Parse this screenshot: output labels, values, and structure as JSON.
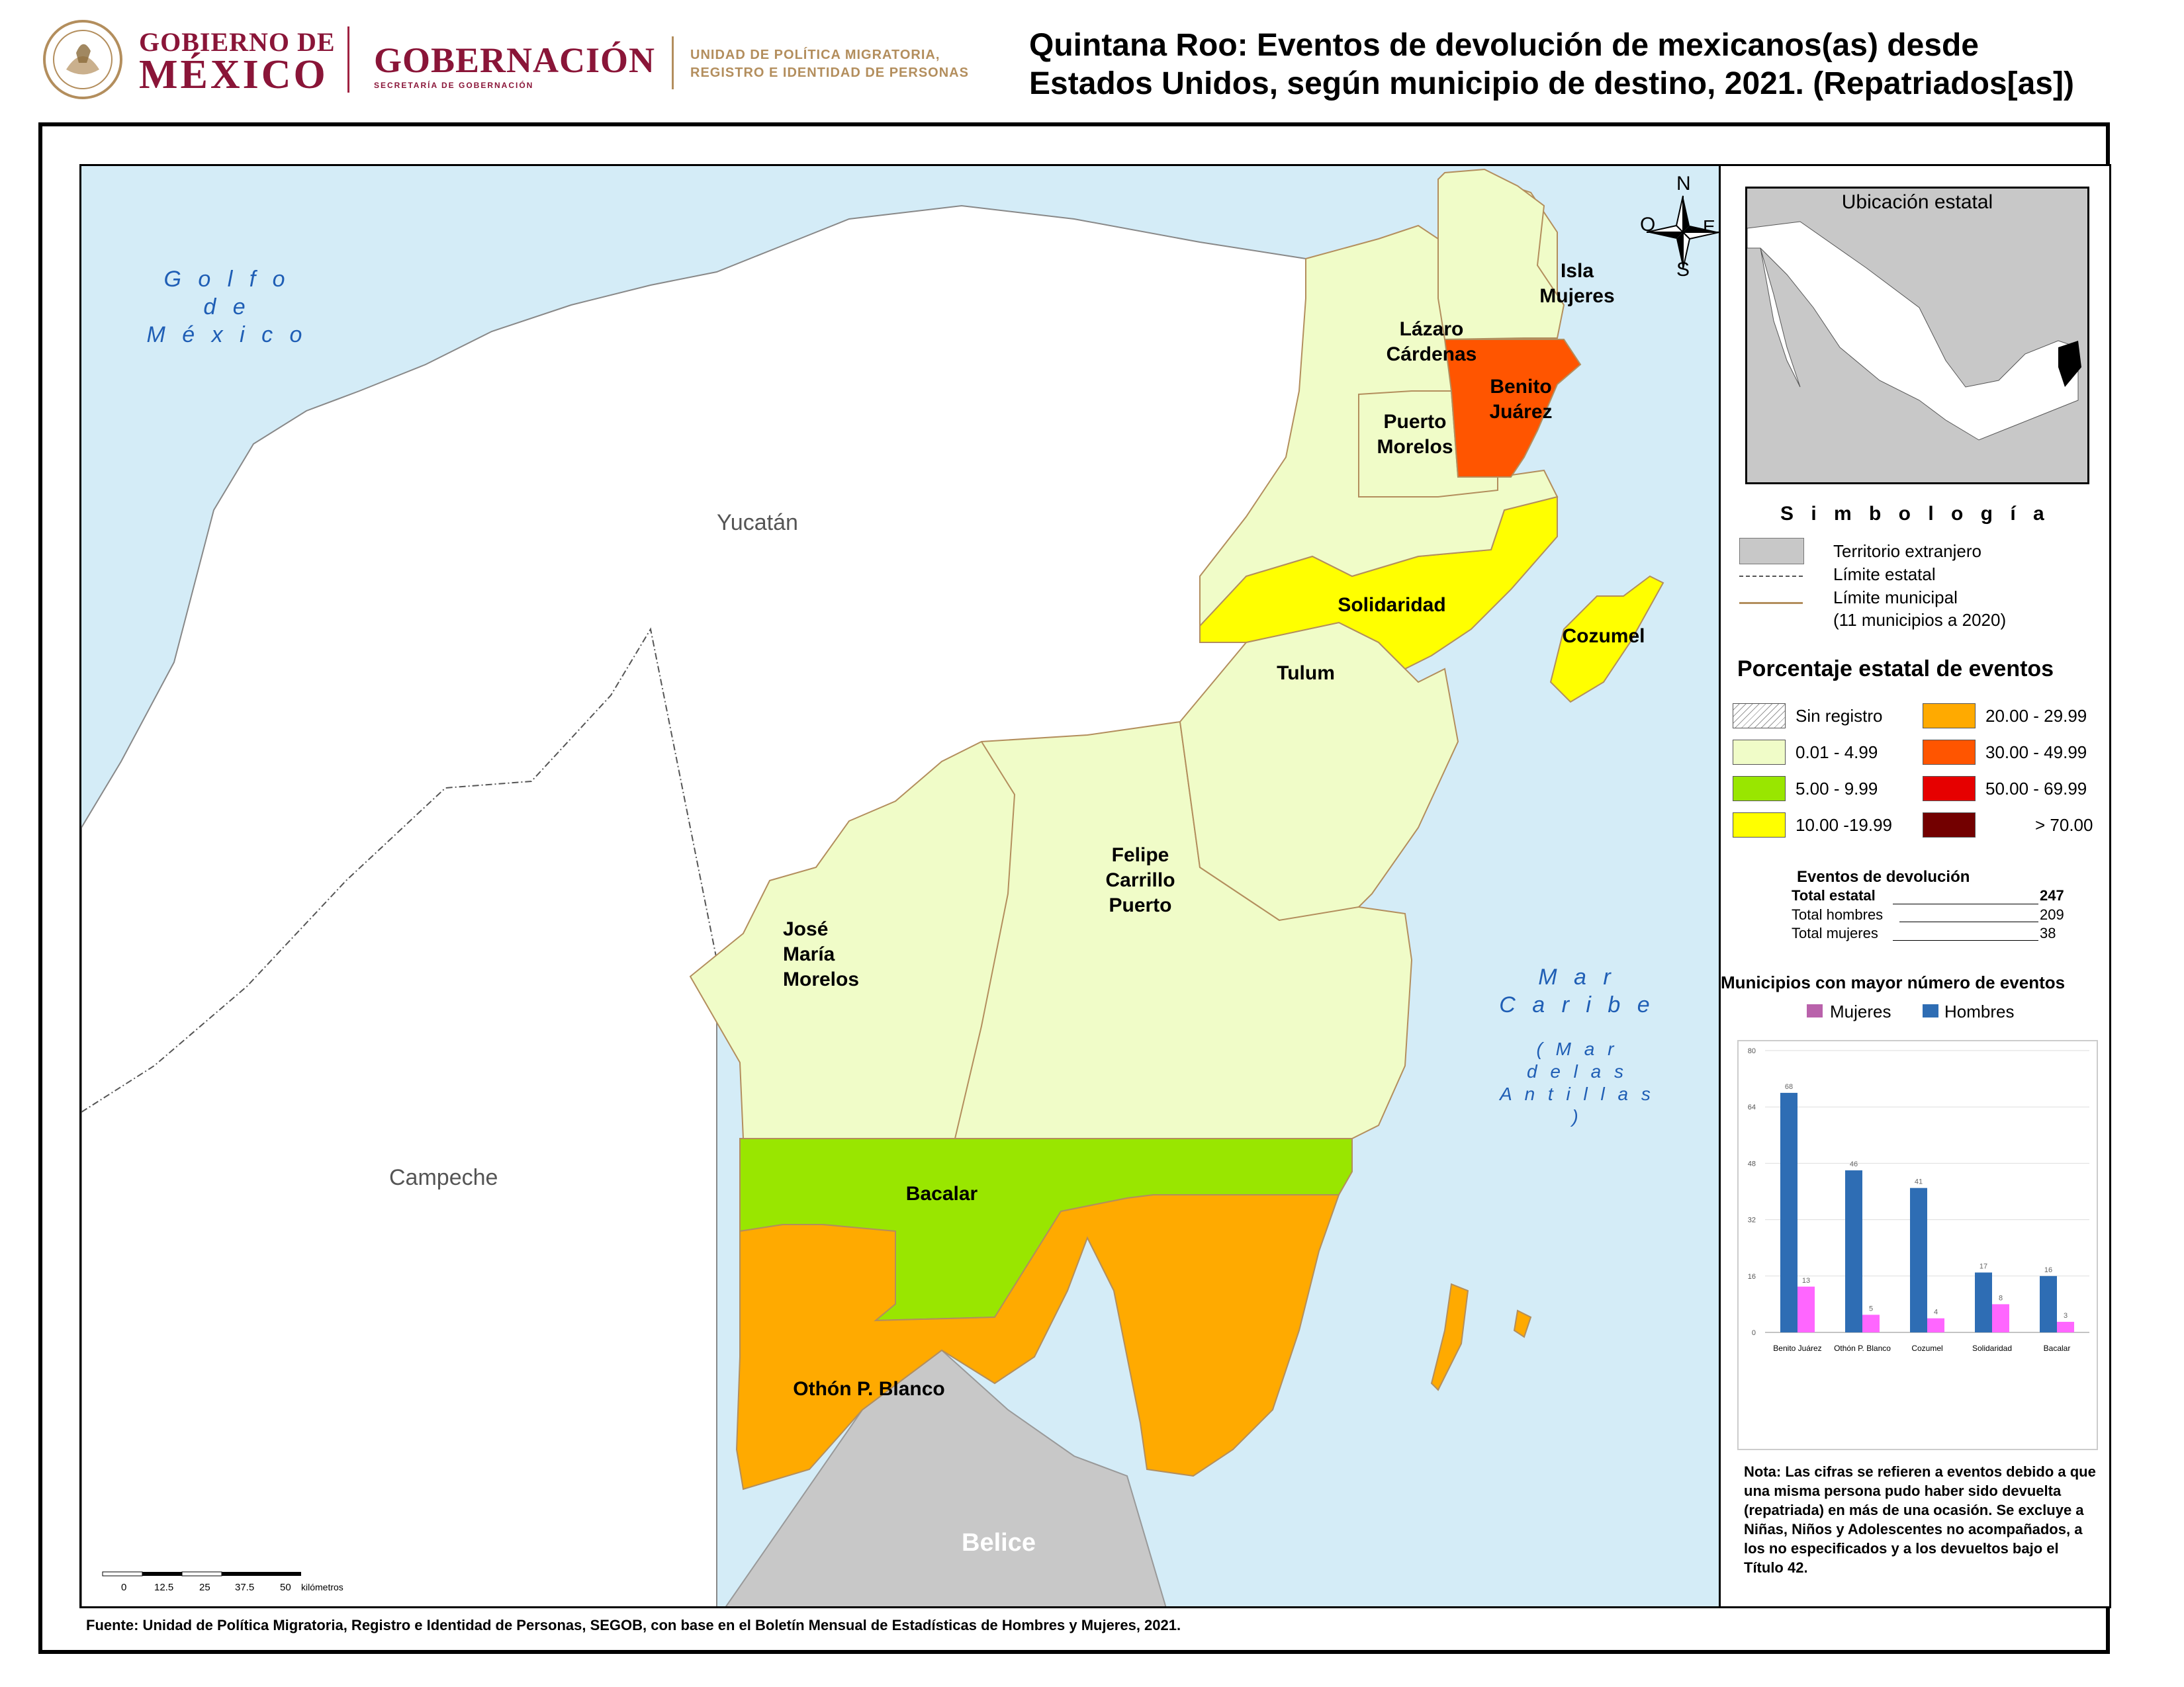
{
  "header": {
    "gob_line1": "GOBIERNO DE",
    "gob_line2": "MÉXICO",
    "gobernacion": "GOBERNACIÓN",
    "secretaria": "SECRETARÍA DE GOBERNACIÓN",
    "unidad_line1": "UNIDAD DE POLÍTICA MIGRATORIA,",
    "unidad_line2": "REGISTRO E IDENTIDAD DE PERSONAS",
    "title_line1": "Quintana Roo: Eventos de devolución de mexicanos(as) desde",
    "title_line2": "Estados Unidos, según municipio de destino, 2021. (Repatriados[as])"
  },
  "map": {
    "sea_gulf": [
      "G o l f o",
      "d e",
      "M é x i c o"
    ],
    "sea_caribe": [
      "M a r",
      "C a r i b e"
    ],
    "sea_antillas": [
      "( M a r",
      "d e   l a s",
      "A n t i l l a s )"
    ],
    "states": {
      "yucatan": "Yucatán",
      "campeche": "Campeche",
      "belice": "Belice"
    },
    "municipios": {
      "isla_mujeres": [
        "Isla",
        "Mujeres"
      ],
      "lazaro_cardenas": [
        "Lázaro",
        "Cárdenas"
      ],
      "benito_juarez": [
        "Benito",
        "Juárez"
      ],
      "puerto_morelos": [
        "Puerto",
        "Morelos"
      ],
      "solidaridad": "Solidaridad",
      "cozumel": "Cozumel",
      "tulum": "Tulum",
      "felipe_carrillo_puerto": [
        "Felipe",
        "Carrillo",
        "Puerto"
      ],
      "jose_maria_morelos": [
        "José",
        "María",
        "Morelos"
      ],
      "bacalar": "Bacalar",
      "othon_p_blanco": "Othón P. Blanco"
    },
    "compass": {
      "n": "N",
      "s": "S",
      "e": "E",
      "o": "O"
    },
    "scale": {
      "ticks": [
        "0",
        "12.5",
        "25",
        "37.5",
        "50"
      ],
      "unit": "kilómetros"
    },
    "colors": {
      "sea": "#d4ecf7",
      "neighbor_states": "#ffffff",
      "foreign": "#c8c8c8",
      "c_0_5": "#f0fcc8",
      "c_5_10": "#99e600",
      "c_10_20": "#ffff00",
      "c_20_30": "#ffaa00",
      "c_30_50": "#ff5500",
      "c_50_70": "#e60000",
      "c_70": "#730000"
    }
  },
  "legend": {
    "inset_title": "Ubicación estatal",
    "simbologia": "S i m b o l o g í a",
    "territorio": "Territorio extranjero",
    "limite_estatal": "Límite estatal",
    "limite_municipal": "Límite municipal",
    "municipios_note": "(11 municipios a 2020)",
    "pct_title": "Porcentaje estatal de eventos",
    "classes": [
      {
        "label": "Sin registro",
        "color": "#ffffff"
      },
      {
        "label": "0.01  - 4.99",
        "color": "#f0fcc8"
      },
      {
        "label": "5.00  - 9.99",
        "color": "#99e600"
      },
      {
        "label": "10.00 -19.99",
        "color": "#ffff00"
      },
      {
        "label": "20.00 - 29.99",
        "color": "#ffaa00"
      },
      {
        "label": "30.00 - 49.99",
        "color": "#ff5500"
      },
      {
        "label": "50.00 - 69.99",
        "color": "#e60000"
      },
      {
        "label": "> 70.00",
        "color": "#730000"
      }
    ],
    "eventos": {
      "title": "Eventos de devolución",
      "total_estatal_label": "Total estatal",
      "total_estatal": "247",
      "total_hombres_label": "Total hombres",
      "total_hombres": "209",
      "total_mujeres_label": "Total mujeres",
      "total_mujeres": "38"
    },
    "mun_title": "Municipios con mayor número de eventos",
    "series_mujeres": "Mujeres",
    "series_hombres": "Hombres",
    "note": "Nota: Las cifras se refieren a eventos debido a que una misma persona pudo haber sido devuelta (repatriada) en más de una ocasión. Se excluye a Niñas, Niños y Adolescentes no acompañados, a los no especificados y a los devueltos bajo el Título 42."
  },
  "source": "Fuente: Unidad de Política Migratoria, Registro e Identidad de Personas, SEGOB, con base en el Boletín Mensual de Estadísticas de Hombres y Mujeres, 2021.",
  "chart_data": {
    "type": "bar",
    "categories": [
      "Benito Juárez",
      "Othón P. Blanco",
      "Cozumel",
      "Solidaridad",
      "Bacalar"
    ],
    "series": [
      {
        "name": "Hombres",
        "values": [
          68,
          46,
          41,
          17,
          16
        ],
        "color": "#2e6db4"
      },
      {
        "name": "Mujeres",
        "values": [
          13,
          5,
          4,
          8,
          3
        ],
        "color": "#ff66ff"
      }
    ],
    "yticks": [
      0,
      16,
      32,
      48,
      64,
      80
    ],
    "ylim": [
      0,
      80
    ]
  }
}
